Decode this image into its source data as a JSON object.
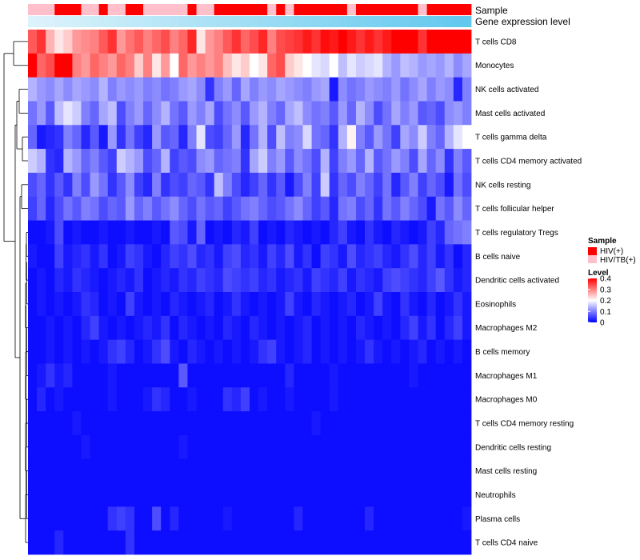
{
  "chart_data": {
    "type": "heatmap",
    "title": "",
    "annotations": [
      {
        "name": "Sample"
      },
      {
        "name": "Gene expression level"
      }
    ],
    "rows": [
      "T cells CD8",
      "Monocytes",
      "NK cells activated",
      "Mast cells activated",
      "T cells gamma delta",
      "T cells CD4 memory activated",
      "NK cells resting",
      "T cells follicular helper",
      "T cells regulatory  Tregs",
      "B cells naive",
      "Dendritic cells activated",
      "Eosinophils",
      "Macrophages M2",
      "B cells memory",
      "Macrophages M1",
      "Macrophages M0",
      "T cells CD4 memory resting",
      "Dendritic cells resting",
      "Mast cells resting",
      "Neutrophils",
      "Plasma cells",
      "T cells CD4 naive"
    ],
    "sample_groups": [
      "HIV/TB(+)",
      "HIV/TB(+)",
      "HIV/TB(+)",
      "HIV(+)",
      "HIV(+)",
      "HIV(+)",
      "HIV/TB(+)",
      "HIV/TB(+)",
      "HIV(+)",
      "HIV/TB(+)",
      "HIV/TB(+)",
      "HIV(+)",
      "HIV(+)",
      "HIV/TB(+)",
      "HIV/TB(+)",
      "HIV/TB(+)",
      "HIV/TB(+)",
      "HIV/TB(+)",
      "HIV(+)",
      "HIV/TB(+)",
      "HIV/TB(+)",
      "HIV(+)",
      "HIV(+)",
      "HIV(+)",
      "HIV(+)",
      "HIV(+)",
      "HIV(+)",
      "HIV/TB(+)",
      "HIV(+)",
      "HIV/TB(+)",
      "HIV(+)",
      "HIV(+)",
      "HIV(+)",
      "HIV(+)",
      "HIV(+)",
      "HIV(+)",
      "HIV/TB(+)",
      "HIV(+)",
      "HIV(+)",
      "HIV(+)",
      "HIV(+)",
      "HIV(+)",
      "HIV(+)",
      "HIV(+)",
      "HIV/TB(+)",
      "HIV(+)",
      "HIV(+)",
      "HIV(+)",
      "HIV(+)",
      "HIV(+)"
    ],
    "values": [
      [
        0.33,
        0.36,
        0.26,
        0.22,
        0.24,
        0.28,
        0.29,
        0.3,
        0.33,
        0.36,
        0.28,
        0.31,
        0.33,
        0.3,
        0.32,
        0.34,
        0.3,
        0.32,
        0.37,
        0.22,
        0.28,
        0.3,
        0.33,
        0.36,
        0.32,
        0.34,
        0.37,
        0.3,
        0.34,
        0.35,
        0.36,
        0.38,
        0.36,
        0.39,
        0.38,
        0.4,
        0.38,
        0.36,
        0.38,
        0.36,
        0.38,
        0.4,
        0.4,
        0.4,
        0.36,
        0.4,
        0.4,
        0.4,
        0.4,
        0.4
      ],
      [
        0.4,
        0.32,
        0.34,
        0.4,
        0.4,
        0.3,
        0.28,
        0.32,
        0.3,
        0.28,
        0.32,
        0.3,
        0.24,
        0.3,
        0.22,
        0.28,
        0.2,
        0.32,
        0.28,
        0.3,
        0.28,
        0.3,
        0.25,
        0.22,
        0.24,
        0.2,
        0.22,
        0.32,
        0.34,
        0.24,
        0.22,
        0.2,
        0.18,
        0.17,
        0.2,
        0.15,
        0.18,
        0.16,
        0.17,
        0.18,
        0.14,
        0.12,
        0.15,
        0.14,
        0.12,
        0.13,
        0.12,
        0.14,
        0.11,
        0.13
      ],
      [
        0.14,
        0.12,
        0.11,
        0.13,
        0.11,
        0.13,
        0.12,
        0.11,
        0.14,
        0.1,
        0.12,
        0.11,
        0.12,
        0.1,
        0.11,
        0.09,
        0.1,
        0.12,
        0.13,
        0.11,
        0.04,
        0.1,
        0.12,
        0.08,
        0.13,
        0.1,
        0.12,
        0.11,
        0.13,
        0.12,
        0.11,
        0.1,
        0.12,
        0.13,
        0.02,
        0.11,
        0.09,
        0.1,
        0.12,
        0.11,
        0.1,
        0.12,
        0.09,
        0.11,
        0.13,
        0.1,
        0.12,
        0.11,
        0.03,
        0.1
      ],
      [
        0.09,
        0.12,
        0.07,
        0.15,
        0.18,
        0.16,
        0.1,
        0.08,
        0.13,
        0.15,
        0.06,
        0.1,
        0.12,
        0.08,
        0.11,
        0.14,
        0.09,
        0.07,
        0.12,
        0.1,
        0.13,
        0.06,
        0.09,
        0.11,
        0.07,
        0.12,
        0.14,
        0.1,
        0.08,
        0.13,
        0.15,
        0.11,
        0.09,
        0.1,
        0.07,
        0.12,
        0.08,
        0.14,
        0.11,
        0.06,
        0.09,
        0.13,
        0.1,
        0.12,
        0.07,
        0.08,
        0.06,
        0.11,
        0.12,
        0.1
      ],
      [
        0.08,
        0.02,
        0.03,
        0.04,
        0.1,
        0.08,
        0.03,
        0.07,
        0.02,
        0.12,
        0.04,
        0.09,
        0.05,
        0.03,
        0.12,
        0.07,
        0.08,
        0.03,
        0.1,
        0.18,
        0.06,
        0.05,
        0.08,
        0.12,
        0.03,
        0.09,
        0.14,
        0.06,
        0.15,
        0.1,
        0.11,
        0.17,
        0.09,
        0.08,
        0.04,
        0.14,
        0.21,
        0.1,
        0.07,
        0.12,
        0.09,
        0.05,
        0.13,
        0.11,
        0.16,
        0.1,
        0.08,
        0.14,
        0.18,
        0.2
      ],
      [
        0.16,
        0.14,
        0.04,
        0.03,
        0.14,
        0.12,
        0.08,
        0.1,
        0.07,
        0.05,
        0.16,
        0.14,
        0.12,
        0.06,
        0.08,
        0.14,
        0.05,
        0.07,
        0.06,
        0.11,
        0.12,
        0.08,
        0.09,
        0.1,
        0.04,
        0.13,
        0.16,
        0.1,
        0.12,
        0.07,
        0.11,
        0.09,
        0.06,
        0.14,
        0.05,
        0.1,
        0.12,
        0.08,
        0.14,
        0.07,
        0.09,
        0.12,
        0.1,
        0.06,
        0.13,
        0.08,
        0.11,
        0.04,
        0.1,
        0.07
      ],
      [
        0.06,
        0.08,
        0.04,
        0.07,
        0.04,
        0.1,
        0.06,
        0.12,
        0.09,
        0.04,
        0.07,
        0.11,
        0.05,
        0.03,
        0.1,
        0.04,
        0.06,
        0.05,
        0.08,
        0.07,
        0.04,
        0.15,
        0.1,
        0.06,
        0.03,
        0.05,
        0.08,
        0.04,
        0.07,
        0.02,
        0.06,
        0.1,
        0.05,
        0.16,
        0.04,
        0.08,
        0.06,
        0.1,
        0.08,
        0.05,
        0.09,
        0.03,
        0.07,
        0.1,
        0.05,
        0.08,
        0.06,
        0.02,
        0.09,
        0.06
      ],
      [
        0.05,
        0.08,
        0.03,
        0.06,
        0.09,
        0.07,
        0.1,
        0.09,
        0.06,
        0.08,
        0.07,
        0.12,
        0.08,
        0.1,
        0.07,
        0.09,
        0.11,
        0.08,
        0.06,
        0.09,
        0.07,
        0.08,
        0.05,
        0.07,
        0.09,
        0.1,
        0.08,
        0.06,
        0.07,
        0.09,
        0.11,
        0.08,
        0.05,
        0.07,
        0.03,
        0.09,
        0.1,
        0.06,
        0.08,
        0.04,
        0.09,
        0.07,
        0.1,
        0.08,
        0.06,
        0.02,
        0.09,
        0.07,
        0.11,
        0.08
      ],
      [
        0.01,
        0.01,
        0.02,
        0.06,
        0.01,
        0.02,
        0.01,
        0.01,
        0.02,
        0.01,
        0.01,
        0.02,
        0.01,
        0.01,
        0.02,
        0.01,
        0.07,
        0.06,
        0.02,
        0.08,
        0.01,
        0.02,
        0.01,
        0.03,
        0.02,
        0.05,
        0.01,
        0.02,
        0.01,
        0.03,
        0.02,
        0.01,
        0.02,
        0.01,
        0.03,
        0.05,
        0.02,
        0.01,
        0.04,
        0.02,
        0.01,
        0.03,
        0.02,
        0.01,
        0.02,
        0.05,
        0.03,
        0.08,
        0.09,
        0.1
      ],
      [
        0.02,
        0.01,
        0.01,
        0.05,
        0.02,
        0.03,
        0.04,
        0.02,
        0.04,
        0.01,
        0.02,
        0.05,
        0.04,
        0.02,
        0.01,
        0.03,
        0.05,
        0.04,
        0.06,
        0.03,
        0.04,
        0.02,
        0.05,
        0.06,
        0.03,
        0.04,
        0.02,
        0.05,
        0.03,
        0.06,
        0.02,
        0.04,
        0.01,
        0.05,
        0.04,
        0.02,
        0.06,
        0.03,
        0.04,
        0.05,
        0.03,
        0.02,
        0.04,
        0.06,
        0.03,
        0.05,
        0.02,
        0.04,
        0.01,
        0.03
      ],
      [
        0.01,
        0.02,
        0.01,
        0.03,
        0.02,
        0.04,
        0.03,
        0.02,
        0.01,
        0.02,
        0.03,
        0.02,
        0.04,
        0.01,
        0.02,
        0.03,
        0.02,
        0.04,
        0.03,
        0.05,
        0.04,
        0.03,
        0.06,
        0.05,
        0.04,
        0.05,
        0.03,
        0.04,
        0.02,
        0.03,
        0.04,
        0.02,
        0.05,
        0.04,
        0.03,
        0.05,
        0.02,
        0.04,
        0.03,
        0.02,
        0.05,
        0.06,
        0.05,
        0.04,
        0.03,
        0.05,
        0.07,
        0.04,
        0.02,
        0.03
      ],
      [
        0.01,
        0.02,
        0.01,
        0.02,
        0.01,
        0.02,
        0.04,
        0.03,
        0.01,
        0.02,
        0.01,
        0.05,
        0.02,
        0.01,
        0.02,
        0.01,
        0.03,
        0.02,
        0.01,
        0.02,
        0.03,
        0.01,
        0.02,
        0.04,
        0.02,
        0.01,
        0.02,
        0.01,
        0.02,
        0.05,
        0.02,
        0.01,
        0.03,
        0.02,
        0.01,
        0.02,
        0.03,
        0.01,
        0.02,
        0.05,
        0.02,
        0.01,
        0.04,
        0.02,
        0.01,
        0.03,
        0.01,
        0.02,
        0.04,
        0.02
      ],
      [
        0.01,
        0.01,
        0.02,
        0.01,
        0.02,
        0.01,
        0.03,
        0.05,
        0.02,
        0.01,
        0.02,
        0.01,
        0.02,
        0.03,
        0.02,
        0.04,
        0.01,
        0.03,
        0.02,
        0.01,
        0.02,
        0.01,
        0.03,
        0.02,
        0.01,
        0.03,
        0.02,
        0.01,
        0.02,
        0.01,
        0.02,
        0.03,
        0.01,
        0.02,
        0.01,
        0.02,
        0.01,
        0.03,
        0.02,
        0.01,
        0.02,
        0.01,
        0.03,
        0.05,
        0.02,
        0.04,
        0.01,
        0.03,
        0.05,
        0.02
      ],
      [
        0.01,
        0.01,
        0.02,
        0.01,
        0.02,
        0.01,
        0.02,
        0.01,
        0.02,
        0.04,
        0.05,
        0.03,
        0.01,
        0.02,
        0.04,
        0.06,
        0.02,
        0.01,
        0.03,
        0.02,
        0.01,
        0.02,
        0.01,
        0.02,
        0.01,
        0.02,
        0.04,
        0.05,
        0.02,
        0.01,
        0.02,
        0.03,
        0.01,
        0.02,
        0.01,
        0.02,
        0.01,
        0.02,
        0.04,
        0.02,
        0.01,
        0.02,
        0.01,
        0.02,
        0.03,
        0.01,
        0.02,
        0.01,
        0.02,
        0.01
      ],
      [
        0.01,
        0.02,
        0.04,
        0.02,
        0.03,
        0.01,
        0.01,
        0.01,
        0.01,
        0.02,
        0.01,
        0.01,
        0.01,
        0.01,
        0.01,
        0.01,
        0.01,
        0.07,
        0.01,
        0.01,
        0.01,
        0.01,
        0.01,
        0.01,
        0.01,
        0.01,
        0.01,
        0.01,
        0.01,
        0.03,
        0.01,
        0.01,
        0.01,
        0.01,
        0.02,
        0.01,
        0.01,
        0.01,
        0.01,
        0.01,
        0.01,
        0.01,
        0.01,
        0.02,
        0.01,
        0.01,
        0.01,
        0.01,
        0.01,
        0.01
      ],
      [
        0.01,
        0.03,
        0.01,
        0.02,
        0.01,
        0.01,
        0.01,
        0.01,
        0.01,
        0.02,
        0.01,
        0.01,
        0.01,
        0.02,
        0.04,
        0.03,
        0.01,
        0.01,
        0.02,
        0.01,
        0.01,
        0.01,
        0.04,
        0.03,
        0.05,
        0.01,
        0.02,
        0.01,
        0.01,
        0.02,
        0.01,
        0.01,
        0.01,
        0.01,
        0.02,
        0.01,
        0.01,
        0.01,
        0.01,
        0.01,
        0.01,
        0.01,
        0.01,
        0.01,
        0.01,
        0.01,
        0.01,
        0.01,
        0.01,
        0.01
      ],
      [
        0.01,
        0.01,
        0.01,
        0.01,
        0.01,
        0.02,
        0.01,
        0.01,
        0.01,
        0.01,
        0.01,
        0.01,
        0.01,
        0.01,
        0.01,
        0.01,
        0.01,
        0.01,
        0.01,
        0.01,
        0.01,
        0.01,
        0.01,
        0.01,
        0.01,
        0.01,
        0.01,
        0.01,
        0.01,
        0.01,
        0.01,
        0.01,
        0.02,
        0.01,
        0.01,
        0.01,
        0.01,
        0.01,
        0.01,
        0.01,
        0.01,
        0.01,
        0.01,
        0.01,
        0.01,
        0.01,
        0.01,
        0.01,
        0.01,
        0.01
      ],
      [
        0.01,
        0.01,
        0.01,
        0.01,
        0.01,
        0.01,
        0.02,
        0.01,
        0.01,
        0.01,
        0.01,
        0.01,
        0.01,
        0.01,
        0.01,
        0.01,
        0.01,
        0.02,
        0.01,
        0.01,
        0.01,
        0.01,
        0.01,
        0.01,
        0.01,
        0.01,
        0.01,
        0.01,
        0.01,
        0.01,
        0.01,
        0.01,
        0.01,
        0.01,
        0.01,
        0.01,
        0.01,
        0.01,
        0.01,
        0.01,
        0.01,
        0.01,
        0.01,
        0.01,
        0.01,
        0.01,
        0.01,
        0.01,
        0.01,
        0.01
      ],
      [
        0.01,
        0.01,
        0.01,
        0.01,
        0.01,
        0.01,
        0.01,
        0.01,
        0.01,
        0.01,
        0.01,
        0.01,
        0.01,
        0.01,
        0.01,
        0.01,
        0.01,
        0.01,
        0.01,
        0.01,
        0.01,
        0.01,
        0.01,
        0.01,
        0.01,
        0.01,
        0.01,
        0.01,
        0.01,
        0.01,
        0.01,
        0.01,
        0.01,
        0.01,
        0.01,
        0.01,
        0.01,
        0.01,
        0.01,
        0.01,
        0.01,
        0.01,
        0.01,
        0.01,
        0.01,
        0.01,
        0.01,
        0.01,
        0.01,
        0.01
      ],
      [
        0.01,
        0.01,
        0.01,
        0.01,
        0.01,
        0.01,
        0.01,
        0.01,
        0.01,
        0.01,
        0.01,
        0.01,
        0.01,
        0.01,
        0.01,
        0.01,
        0.01,
        0.01,
        0.01,
        0.01,
        0.01,
        0.01,
        0.01,
        0.01,
        0.01,
        0.01,
        0.01,
        0.01,
        0.01,
        0.01,
        0.01,
        0.01,
        0.01,
        0.01,
        0.01,
        0.01,
        0.01,
        0.01,
        0.01,
        0.01,
        0.01,
        0.01,
        0.01,
        0.01,
        0.01,
        0.01,
        0.01,
        0.01,
        0.01,
        0.01
      ],
      [
        0.01,
        0.01,
        0.01,
        0.01,
        0.01,
        0.01,
        0.01,
        0.01,
        0.01,
        0.04,
        0.05,
        0.04,
        0.01,
        0.01,
        0.06,
        0.01,
        0.03,
        0.01,
        0.01,
        0.01,
        0.01,
        0.01,
        0.02,
        0.01,
        0.01,
        0.01,
        0.01,
        0.01,
        0.01,
        0.01,
        0.03,
        0.01,
        0.01,
        0.01,
        0.01,
        0.01,
        0.01,
        0.01,
        0.03,
        0.01,
        0.01,
        0.01,
        0.01,
        0.01,
        0.01,
        0.01,
        0.01,
        0.01,
        0.01,
        0.02
      ],
      [
        0.01,
        0.01,
        0.01,
        0.03,
        0.01,
        0.01,
        0.01,
        0.01,
        0.01,
        0.01,
        0.01,
        0.04,
        0.01,
        0.01,
        0.01,
        0.01,
        0.01,
        0.01,
        0.01,
        0.01,
        0.01,
        0.01,
        0.01,
        0.01,
        0.01,
        0.01,
        0.01,
        0.01,
        0.01,
        0.01,
        0.01,
        0.01,
        0.01,
        0.01,
        0.01,
        0.01,
        0.01,
        0.01,
        0.01,
        0.01,
        0.01,
        0.01,
        0.01,
        0.01,
        0.01,
        0.01,
        0.01,
        0.01,
        0.01,
        0.01
      ]
    ],
    "legend_sample": {
      "title": "Sample",
      "entries": [
        {
          "label": "HIV(+)",
          "color": "#ff0000"
        },
        {
          "label": "HIV/TB(+)",
          "color": "#ffc0cb"
        }
      ]
    },
    "legend_level": {
      "title": "Level",
      "ticks": [
        0.4,
        0.3,
        0.2,
        0.1,
        0
      ],
      "tick_labels": [
        "0.4",
        "0.3",
        "0.2",
        "0.1",
        "0"
      ],
      "range": [
        0,
        0.4
      ],
      "colors": {
        "low": "#0000ff",
        "mid": "#ffffff",
        "high": "#ff0000"
      }
    },
    "expression_annotation_colors": {
      "low": "#ddf3fb",
      "high": "#61c8ee"
    }
  }
}
